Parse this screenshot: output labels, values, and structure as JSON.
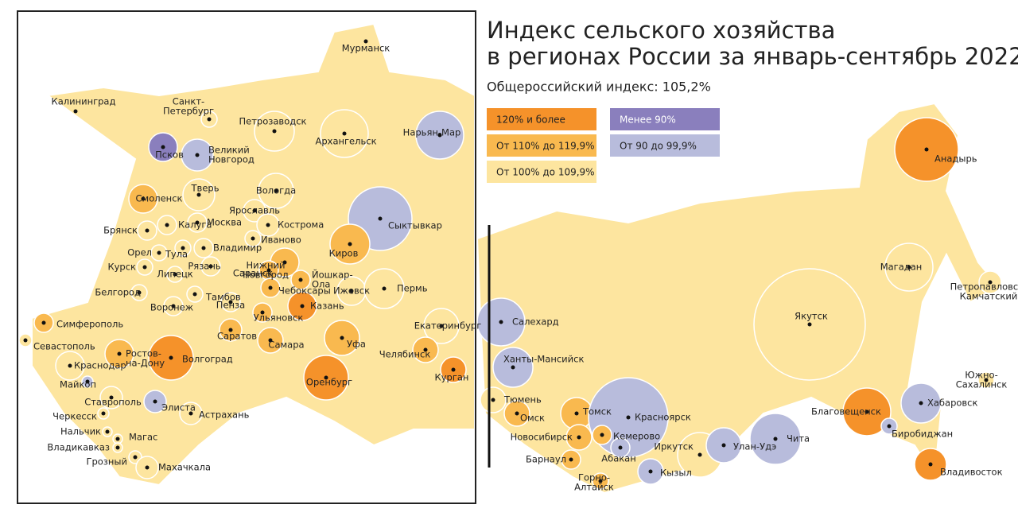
{
  "header": {
    "title": [
      "Индекс сельского хозяйства",
      "в регионах России за январь-сентябрь 2022"
    ],
    "subtitle": "Общероссийский индекс: 105,2%"
  },
  "legend": [
    {
      "label": "120% и более",
      "color": "#f5922a"
    },
    {
      "label": "От 110% до 119,9%",
      "color": "#f9b94f"
    },
    {
      "label": "От 100% до 109,9%",
      "color": "#fde59f"
    },
    {
      "label": "Менее 90%",
      "color": "#8a7fbd"
    },
    {
      "label": "От 90 до 99,9%",
      "color": "#b8bcdc"
    }
  ],
  "cities": [
    {
      "label": [
        "Мурманск"
      ],
      "legend": 4
    },
    {
      "label": [
        "Калининград"
      ],
      "legend": 2
    },
    {
      "label": [
        "Санкт-",
        "Петербург"
      ],
      "legend": 2
    },
    {
      "label": [
        "Псков"
      ],
      "legend": 3
    },
    {
      "label": [
        "Великий",
        "Новгород"
      ],
      "legend": 4
    },
    {
      "label": [
        "Петрозаводск"
      ],
      "legend": 2
    },
    {
      "label": [
        "Архангельск"
      ],
      "legend": 2
    },
    {
      "label": [
        "Нарьян-Мар"
      ],
      "legend": 4
    },
    {
      "label": [
        "Смоленск"
      ],
      "legend": 1
    },
    {
      "label": [
        "Тверь"
      ],
      "legend": 2
    },
    {
      "label": [
        "Вологда"
      ],
      "legend": 2
    },
    {
      "label": [
        "Сыктывкар"
      ],
      "legend": 4
    },
    {
      "label": [
        "Ярославль"
      ],
      "legend": 2
    },
    {
      "label": [
        "Кострома"
      ],
      "legend": 2
    },
    {
      "label": [
        "Брянск"
      ],
      "legend": 2
    },
    {
      "label": [
        "Калуга"
      ],
      "legend": 2
    },
    {
      "label": [
        "Москва"
      ],
      "legend": 2
    },
    {
      "label": [
        "Иваново"
      ],
      "legend": 2
    },
    {
      "label": [
        "Орел"
      ],
      "legend": 2
    },
    {
      "label": [
        "Тула"
      ],
      "legend": 2
    },
    {
      "label": [
        "Владимир"
      ],
      "legend": 2
    },
    {
      "label": [
        "Киров"
      ],
      "legend": 1
    },
    {
      "label": [
        "Курск"
      ],
      "legend": 2
    },
    {
      "label": [
        "Рязань"
      ],
      "legend": 2
    },
    {
      "label": [
        "Нижний",
        "Новгород"
      ],
      "legend": 1
    },
    {
      "label": [
        "Йошкар-",
        "Ола"
      ],
      "legend": 1
    },
    {
      "label": [
        "Липецк"
      ],
      "legend": 2
    },
    {
      "label": [
        "Белгород"
      ],
      "legend": 2
    },
    {
      "label": [
        "Тамбов"
      ],
      "legend": 2
    },
    {
      "label": [
        "Саранск"
      ],
      "legend": 1
    },
    {
      "label": [
        "Чебоксары"
      ],
      "legend": 1
    },
    {
      "label": [
        "Ижевск"
      ],
      "legend": 2
    },
    {
      "label": [
        "Пермь"
      ],
      "legend": 2
    },
    {
      "label": [
        "Воронеж"
      ],
      "legend": 2
    },
    {
      "label": [
        "Пенза"
      ],
      "legend": 2
    },
    {
      "label": [
        "Казань"
      ],
      "legend": 0
    },
    {
      "label": [
        "Ульяновск"
      ],
      "legend": 1
    },
    {
      "label": [
        "Симферополь"
      ],
      "legend": 1
    },
    {
      "label": [
        "Екатеринбург"
      ],
      "legend": 2
    },
    {
      "label": [
        "Севастополь"
      ],
      "legend": 2
    },
    {
      "label": [
        "Саратов"
      ],
      "legend": 1
    },
    {
      "label": [
        "Самара"
      ],
      "legend": 1
    },
    {
      "label": [
        "Уфа"
      ],
      "legend": 1
    },
    {
      "label": [
        "Ростов-",
        "на-Дону"
      ],
      "legend": 1
    },
    {
      "label": [
        "Волгоград"
      ],
      "legend": 0
    },
    {
      "label": [
        "Челябинск"
      ],
      "legend": 1
    },
    {
      "label": [
        "Краснодар"
      ],
      "legend": 2
    },
    {
      "label": [
        "Курган"
      ],
      "legend": 0
    },
    {
      "label": [
        "Майкоп"
      ],
      "legend": 4
    },
    {
      "label": [
        "Оренбург"
      ],
      "legend": 0
    },
    {
      "label": [
        "Ставрополь"
      ],
      "legend": 2
    },
    {
      "label": [
        "Элиста"
      ],
      "legend": 4
    },
    {
      "label": [
        "Черкесск"
      ],
      "legend": 2
    },
    {
      "label": [
        "Астрахань"
      ],
      "legend": 2
    },
    {
      "label": [
        "Нальчик"
      ],
      "legend": 2
    },
    {
      "label": [
        "Магас"
      ],
      "legend": 2
    },
    {
      "label": [
        "Владикавказ"
      ],
      "legend": 2
    },
    {
      "label": [
        "Грозный"
      ],
      "legend": 2
    },
    {
      "label": [
        "Махачкала"
      ],
      "legend": 2
    },
    {
      "label": [
        "Анадырь"
      ],
      "legend": 0
    },
    {
      "label": [
        "Магадан"
      ],
      "legend": 2
    },
    {
      "label": [
        "Петропавловск-",
        "Камчатский"
      ],
      "legend": 2
    },
    {
      "label": [
        "Салехард"
      ],
      "legend": 4
    },
    {
      "label": [
        "Якутск"
      ],
      "legend": 2
    },
    {
      "label": [
        "Ханты-Мансийск"
      ],
      "legend": 4
    },
    {
      "label": [
        "Южно-",
        "Сахалинск"
      ],
      "legend": 2
    },
    {
      "label": [
        "Тюмень"
      ],
      "legend": 2
    },
    {
      "label": [
        "Томск"
      ],
      "legend": 1
    },
    {
      "label": [
        "Красноярск"
      ],
      "legend": 4
    },
    {
      "label": [
        "Благовещенск"
      ],
      "legend": 0
    },
    {
      "label": [
        "Хабаровск"
      ],
      "legend": 4
    },
    {
      "label": [
        "Омск"
      ],
      "legend": 1
    },
    {
      "label": [
        "Новосибирск"
      ],
      "legend": 1
    },
    {
      "label": [
        "Кемерово"
      ],
      "legend": 1
    },
    {
      "label": [
        "Биробиджан"
      ],
      "legend": 4
    },
    {
      "label": [
        "Иркутск"
      ],
      "legend": 2
    },
    {
      "label": [
        "Улан-Удэ"
      ],
      "legend": 4
    },
    {
      "label": [
        "Чита"
      ],
      "legend": 4
    },
    {
      "label": [
        "Абакан"
      ],
      "legend": 4
    },
    {
      "label": [
        "Барнаул"
      ],
      "legend": 1
    },
    {
      "label": [
        "Кызыл"
      ],
      "legend": 4
    },
    {
      "label": [
        "Горно-",
        "Алтайск"
      ],
      "legend": 1
    },
    {
      "label": [
        "Владивосток"
      ],
      "legend": 0
    }
  ]
}
